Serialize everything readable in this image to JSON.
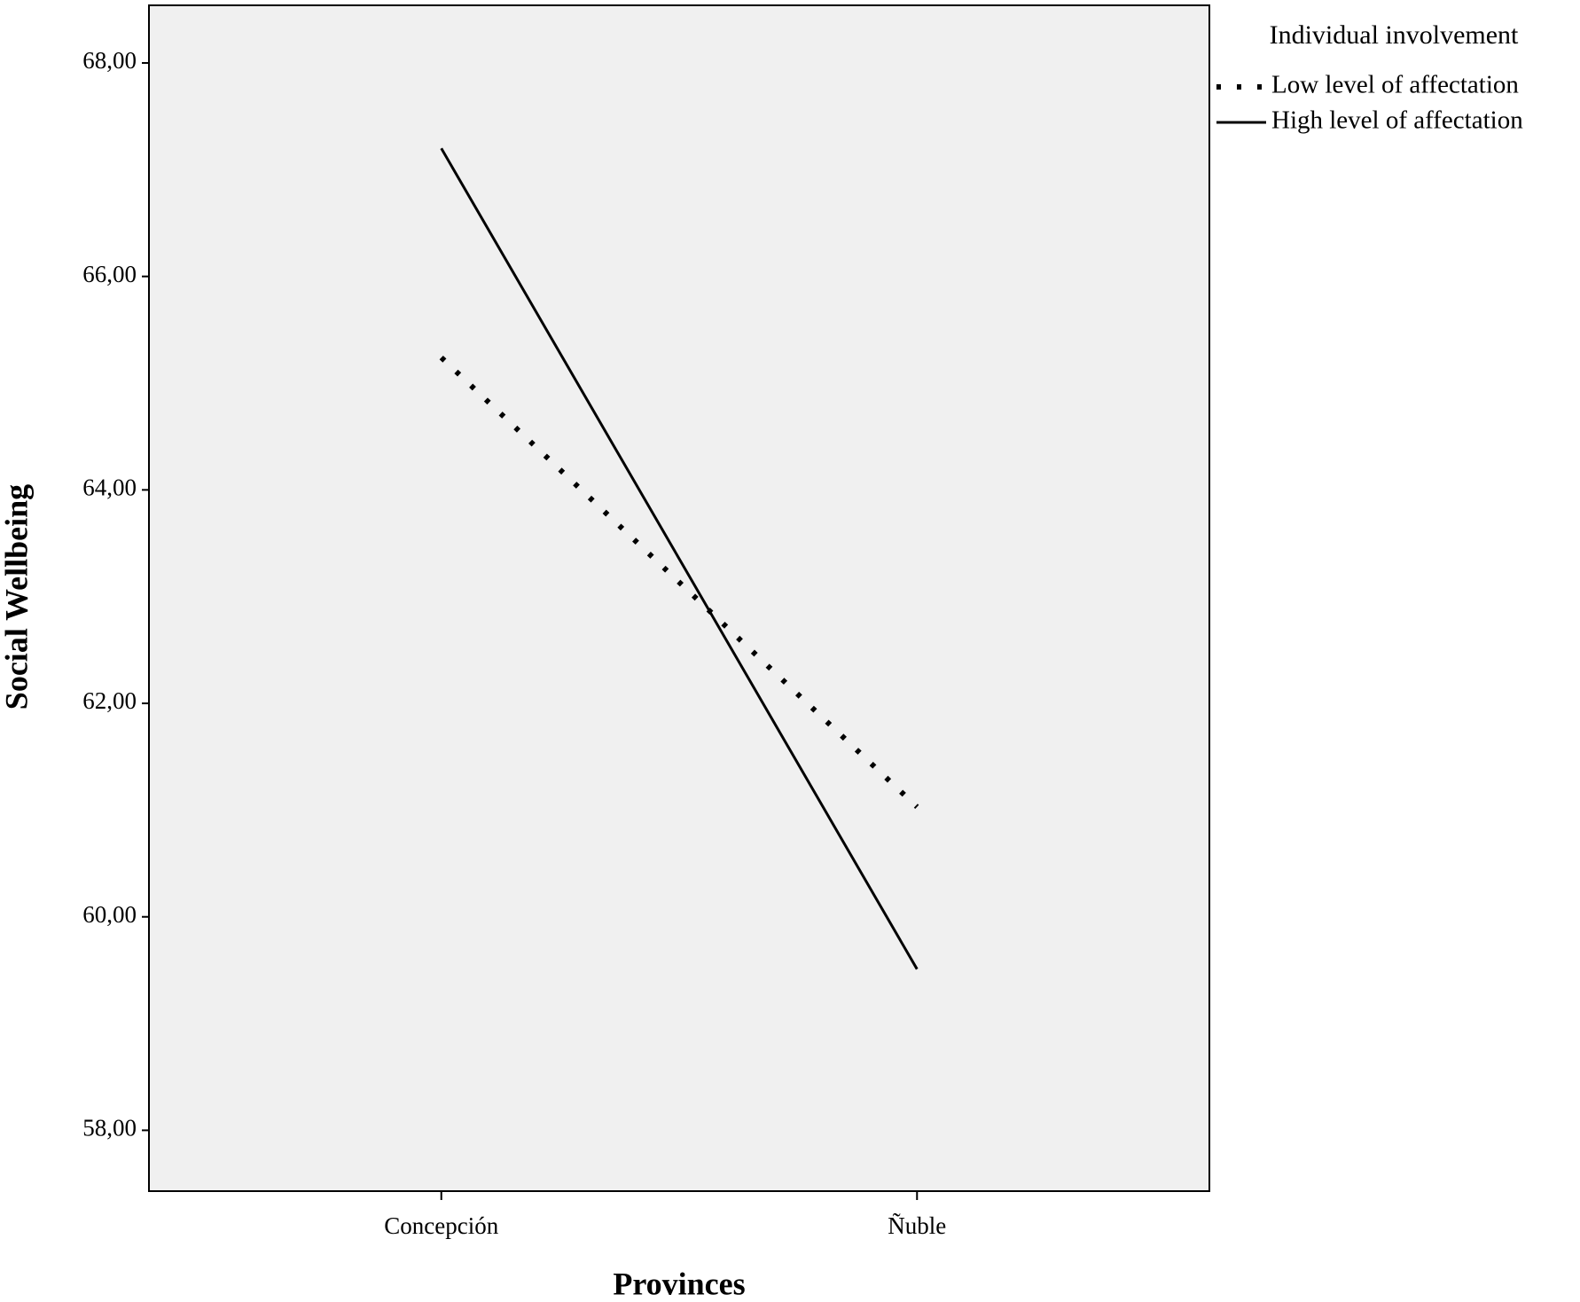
{
  "chart_data": {
    "type": "line",
    "x_label": "Provinces",
    "y_label": "Social Wellbeing",
    "categories": [
      "Concepción",
      "Ñuble"
    ],
    "legend_title": "Individual involvement",
    "legend": "right",
    "series": [
      {
        "name": "Low level of affectation",
        "color": "#000000",
        "style": "dotted",
        "values": [
          65.24,
          61.03
        ]
      },
      {
        "name": "High level of affectation",
        "color": "#000000",
        "style": "solid",
        "values": [
          67.2,
          59.51
        ]
      }
    ],
    "ylim": [
      57.43,
      68.54
    ],
    "yticks": [
      {
        "value": 58,
        "label": "58,00"
      },
      {
        "value": 60,
        "label": "60,00"
      },
      {
        "value": 62,
        "label": "62,00"
      },
      {
        "value": 64,
        "label": "64,00"
      },
      {
        "value": 66,
        "label": "66,00"
      },
      {
        "value": 68,
        "label": "68,00"
      }
    ]
  }
}
